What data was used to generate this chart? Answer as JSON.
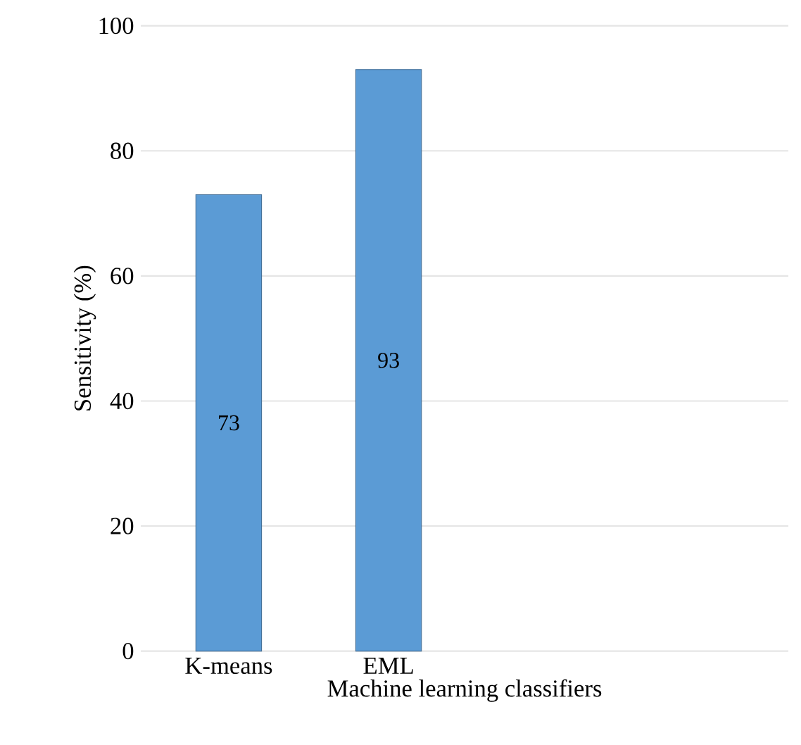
{
  "chart_data": {
    "type": "bar",
    "xlabel": "Machine learning classifiers",
    "ylabel": "Sensitivity (%)",
    "categories": [
      "K-means",
      "EML"
    ],
    "values": [
      73,
      93
    ],
    "value_labels": [
      "73",
      "93"
    ],
    "color": "#5b9bd5",
    "ylim": [
      0,
      100
    ],
    "yticks": [
      0,
      20,
      40,
      60,
      80,
      100
    ],
    "grid": "y"
  }
}
